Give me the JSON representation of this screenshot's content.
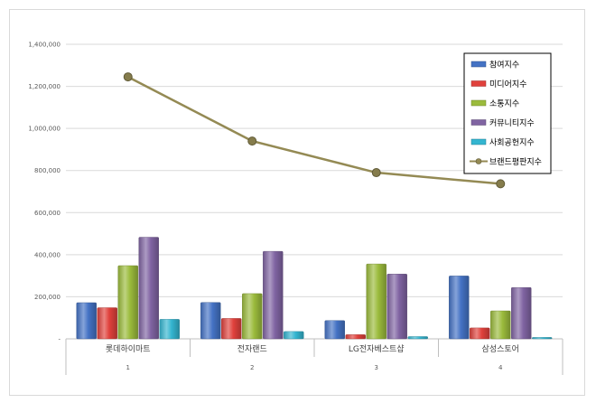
{
  "chart_data": {
    "type": "bar",
    "categories": [
      "롯데하이마트",
      "전자랜드",
      "LG전자베스트샵",
      "삼성스토어"
    ],
    "category_index": [
      "1",
      "2",
      "3",
      "4"
    ],
    "ylim": [
      0,
      1400000
    ],
    "yticks": [
      "-",
      "200,000",
      "400,000",
      "600,000",
      "800,000",
      "1,000,000",
      "1,200,000",
      "1,400,000"
    ],
    "grid": true,
    "legend_position": "top-right",
    "series": [
      {
        "name": "참여지수",
        "type": "bar",
        "color": "#4472c4",
        "values": [
          172000,
          173000,
          87000,
          299000
        ]
      },
      {
        "name": "미디어지수",
        "type": "bar",
        "color": "#e0413c",
        "values": [
          148000,
          97000,
          20000,
          52000
        ]
      },
      {
        "name": "소통지수",
        "type": "bar",
        "color": "#9bbb3c",
        "values": [
          348000,
          215000,
          356000,
          133000
        ]
      },
      {
        "name": "커뮤니티지수",
        "type": "bar",
        "color": "#8064a2",
        "values": [
          483000,
          416000,
          308000,
          244000
        ]
      },
      {
        "name": "사회공헌지수",
        "type": "bar",
        "color": "#34b5d0",
        "values": [
          93000,
          35000,
          11000,
          7000
        ]
      },
      {
        "name": "브랜드평판지수",
        "type": "line",
        "color": "#948a54",
        "values": [
          1245000,
          940000,
          790000,
          737000
        ]
      }
    ]
  }
}
